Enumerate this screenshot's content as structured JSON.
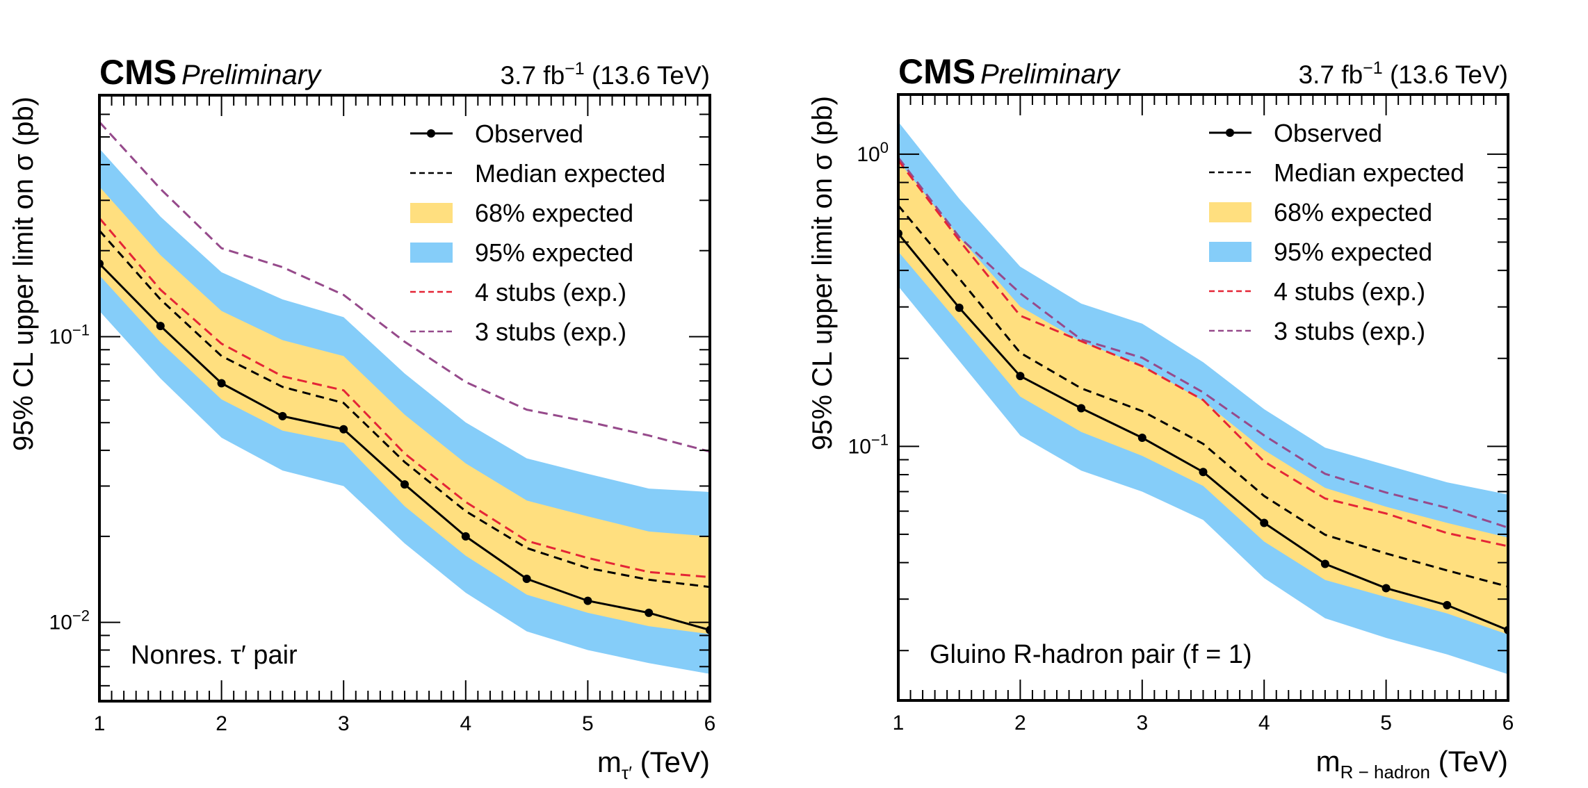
{
  "chart_data": [
    {
      "type": "line",
      "panel": "left",
      "experiment": "CMS",
      "status": "Preliminary",
      "lumi_text": "3.7 fb",
      "lumi_exp": "−1",
      "energy_text": "(13.6 TeV)",
      "inner_label": "Nonres. τ′ pair",
      "xlabel_main": "m",
      "xlabel_sub": "τ′",
      "xlabel_unit": "(TeV)",
      "ylabel": "95% CL upper limit on σ (pb)",
      "xlim": [
        1,
        6
      ],
      "ylim": [
        0.0053,
        0.7
      ],
      "yscale": "log",
      "x_ticks": [
        "1",
        "2",
        "3",
        "4",
        "5",
        "6"
      ],
      "y_ticks": [
        {
          "value": 0.1,
          "base": "10",
          "exp": "−1"
        },
        {
          "value": 0.01,
          "base": "10",
          "exp": "−2"
        }
      ],
      "legend_position": "top-right",
      "x": [
        1.0,
        1.5,
        2.0,
        2.5,
        3.0,
        3.5,
        4.0,
        4.5,
        5.0,
        5.5,
        6.0
      ],
      "series": [
        {
          "name": "Observed",
          "key": "observed",
          "values": [
            0.18,
            0.109,
            0.0687,
            0.0527,
            0.0474,
            0.0304,
            0.02,
            0.0142,
            0.0119,
            0.0108,
            0.0094
          ]
        },
        {
          "name": "Median expected",
          "key": "median",
          "values": [
            0.235,
            0.135,
            0.0855,
            0.0667,
            0.0586,
            0.0364,
            0.0245,
            0.0182,
            0.0155,
            0.0141,
            0.0133
          ]
        },
        {
          "name": "68% expected",
          "key": "band68",
          "low": [
            0.164,
            0.0956,
            0.0603,
            0.0469,
            0.0425,
            0.0255,
            0.0171,
            0.0125,
            0.0108,
            0.0097,
            0.0091
          ],
          "high": [
            0.335,
            0.193,
            0.123,
            0.0972,
            0.0855,
            0.0533,
            0.036,
            0.0267,
            0.0235,
            0.0208,
            0.02
          ]
        },
        {
          "name": "95% expected",
          "key": "band95",
          "low": [
            0.123,
            0.0714,
            0.0443,
            0.034,
            0.03,
            0.0189,
            0.0127,
            0.0093,
            0.008,
            0.0072,
            0.0066
          ],
          "high": [
            0.455,
            0.263,
            0.168,
            0.135,
            0.117,
            0.0743,
            0.0501,
            0.0375,
            0.0331,
            0.0294,
            0.0286
          ]
        },
        {
          "name": "4 stubs (exp.)",
          "key": "stubs4",
          "values": [
            0.26,
            0.146,
            0.0945,
            0.0726,
            0.0649,
            0.039,
            0.0264,
            0.0193,
            0.0168,
            0.015,
            0.0144
          ]
        },
        {
          "name": "3 stubs (exp.)",
          "key": "stubs3",
          "values": [
            0.564,
            0.329,
            0.204,
            0.175,
            0.14,
            0.096,
            0.0694,
            0.0555,
            0.0504,
            0.0451,
            0.0396
          ]
        }
      ]
    },
    {
      "type": "line",
      "panel": "right",
      "experiment": "CMS",
      "status": "Preliminary",
      "lumi_text": "3.7 fb",
      "lumi_exp": "−1",
      "energy_text": "(13.6 TeV)",
      "inner_label": "Gluino R-hadron pair (f = 1)",
      "xlabel_main": "m",
      "xlabel_sub": "R − hadron",
      "xlabel_unit": "(TeV)",
      "ylabel": "95% CL upper limit on σ (pb)",
      "xlim": [
        1,
        6
      ],
      "ylim": [
        0.0135,
        1.6
      ],
      "yscale": "log",
      "x_ticks": [
        "1",
        "2",
        "3",
        "4",
        "5",
        "6"
      ],
      "y_ticks": [
        {
          "value": 1,
          "base": "10",
          "exp": "0"
        },
        {
          "value": 0.1,
          "base": "10",
          "exp": "−1"
        }
      ],
      "legend_position": "top-right",
      "x": [
        1.0,
        1.5,
        2.0,
        2.5,
        3.0,
        3.5,
        4.0,
        4.5,
        5.0,
        5.5,
        6.0
      ],
      "series": [
        {
          "name": "Observed",
          "key": "observed",
          "values": [
            0.535,
            0.298,
            0.174,
            0.135,
            0.107,
            0.0817,
            0.0547,
            0.0396,
            0.0327,
            0.0286,
            0.0235
          ]
        },
        {
          "name": "Median expected",
          "key": "median",
          "values": [
            0.667,
            0.375,
            0.209,
            0.158,
            0.132,
            0.102,
            0.0676,
            0.0498,
            0.043,
            0.0376,
            0.0331
          ]
        },
        {
          "name": "68% expected",
          "key": "band68",
          "low": [
            0.464,
            0.263,
            0.148,
            0.112,
            0.0928,
            0.0732,
            0.0472,
            0.0349,
            0.0305,
            0.0268,
            0.0227
          ],
          "high": [
            0.95,
            0.52,
            0.301,
            0.228,
            0.189,
            0.143,
            0.0971,
            0.0721,
            0.0621,
            0.0547,
            0.0487
          ]
        },
        {
          "name": "95% expected",
          "key": "band95",
          "low": [
            0.353,
            0.196,
            0.109,
            0.0826,
            0.07,
            0.056,
            0.0354,
            0.0258,
            0.0221,
            0.0194,
            0.0166
          ],
          "high": [
            1.29,
            0.704,
            0.412,
            0.308,
            0.263,
            0.194,
            0.134,
            0.099,
            0.0863,
            0.0753,
            0.0684
          ]
        },
        {
          "name": "4 stubs (exp.)",
          "key": "stubs4",
          "values": [
            0.952,
            0.507,
            0.28,
            0.229,
            0.188,
            0.144,
            0.0887,
            0.0663,
            0.0589,
            0.0505,
            0.0455
          ]
        },
        {
          "name": "3 stubs (exp.)",
          "key": "stubs3",
          "values": [
            0.973,
            0.52,
            0.334,
            0.232,
            0.201,
            0.153,
            0.109,
            0.0805,
            0.0695,
            0.0616,
            0.0527
          ]
        }
      ]
    }
  ],
  "colors": {
    "observed": "#000000",
    "median": "#000000",
    "band68": "#FFDF7F",
    "band95": "#85CDF9",
    "stubs4": "#E42536",
    "stubs3": "#964A8B"
  }
}
